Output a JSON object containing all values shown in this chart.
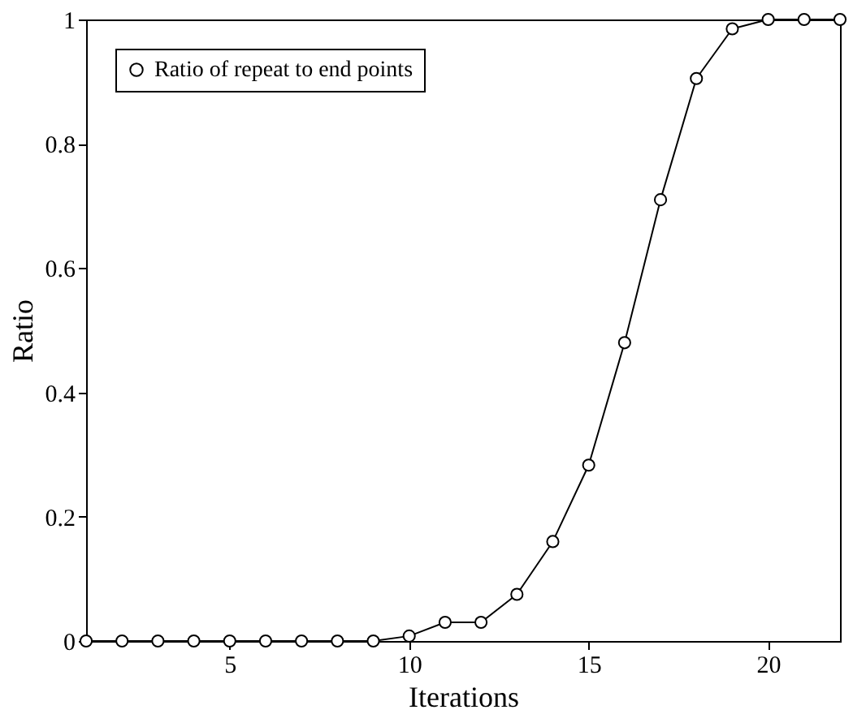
{
  "chart_data": {
    "type": "line",
    "xlabel": "Iterations",
    "ylabel": "Ratio",
    "x": [
      1,
      2,
      3,
      4,
      5,
      6,
      7,
      8,
      9,
      10,
      11,
      12,
      13,
      14,
      15,
      16,
      17,
      18,
      19,
      20,
      21,
      22
    ],
    "series": [
      {
        "name": "Ratio of repeat to end points",
        "color": "#000000",
        "values": [
          0,
          0,
          0,
          0,
          0,
          0,
          0,
          0,
          0,
          0.008,
          0.03,
          0.03,
          0.075,
          0.16,
          0.283,
          0.48,
          0.71,
          0.905,
          0.985,
          1,
          1,
          1
        ]
      }
    ],
    "xlim": [
      1,
      22
    ],
    "xticks": [
      5,
      10,
      15,
      20
    ],
    "ylim": [
      0,
      1
    ],
    "yticks": [
      0,
      0.2,
      0.4,
      0.6,
      0.8,
      1
    ],
    "grid": false,
    "legend": "top left",
    "marker": "circle",
    "line_style": "solid"
  }
}
